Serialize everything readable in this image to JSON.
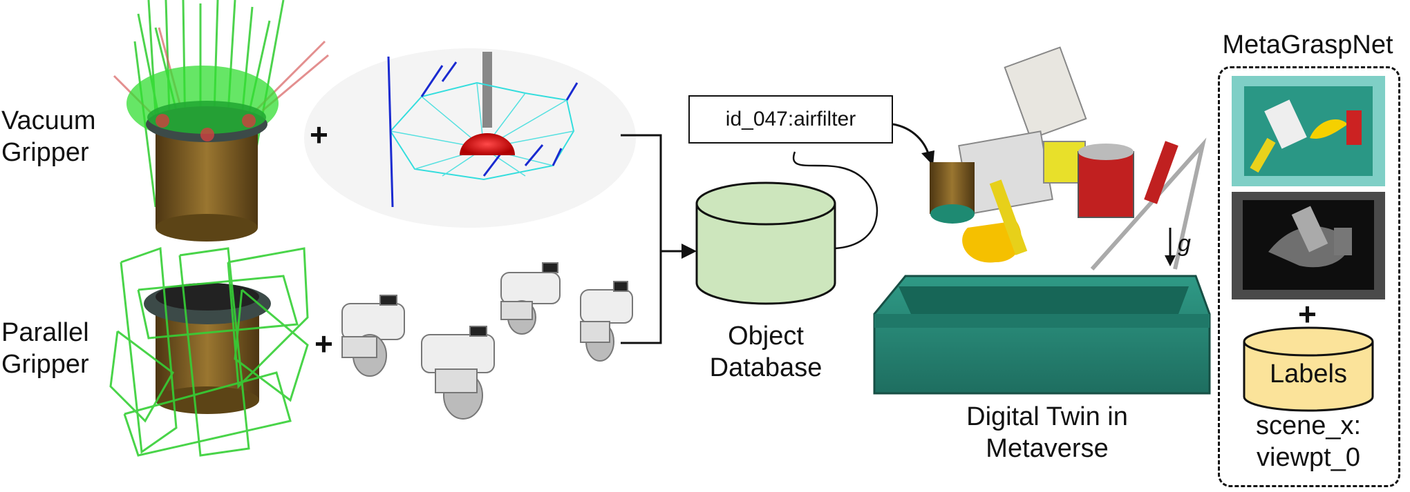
{
  "left": {
    "vacuum_label_line1": "Vacuum",
    "vacuum_label_line2": "Gripper",
    "parallel_label_line1": "Parallel",
    "parallel_label_line2": "Gripper",
    "plus": "+"
  },
  "database": {
    "object_id": "id_047:airfilter",
    "label_line1": "Object",
    "label_line2": "Database"
  },
  "twin": {
    "label_line1": "Digital Twin in",
    "label_line2": "Metaverse",
    "gravity_symbol": "g"
  },
  "metagraspnet": {
    "title": "MetaGraspNet",
    "plus": "+",
    "labels_text": "Labels",
    "scene_line1": "scene_x:",
    "scene_line2": "viewpt_0"
  },
  "colors": {
    "filter_brown": "#7a5a1e",
    "cap_gray": "#3c4a48",
    "grasp_green": "#22cc22",
    "tray_teal": "#2a8a78",
    "db_green": "#cfe8c0",
    "labels_yellow": "#fbe39a"
  }
}
